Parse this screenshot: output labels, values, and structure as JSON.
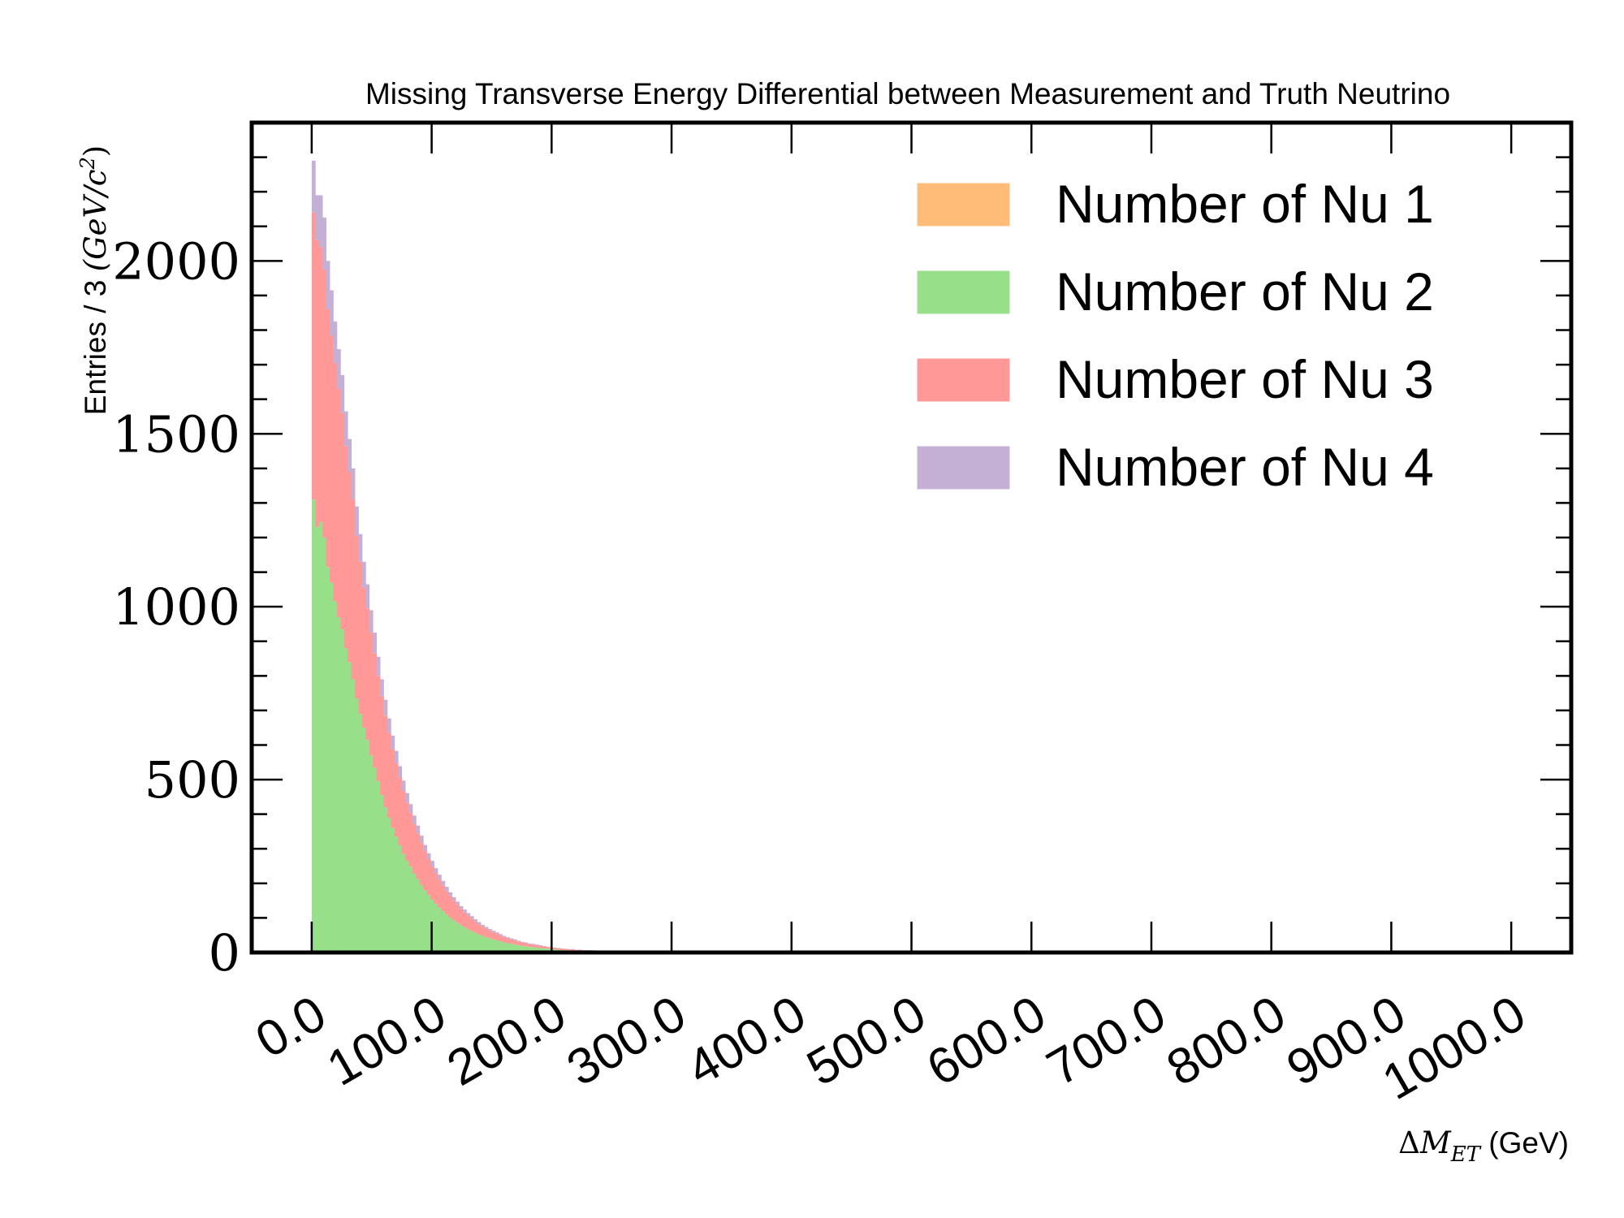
{
  "chart_data": {
    "type": "histogram",
    "stacked": true,
    "title": "Missing Transverse Energy Differential between Measurement and Truth Neutrino",
    "xlabel": "ΔM_ET (GeV)",
    "xlabel_parts": {
      "delta": "Δ",
      "symbol": "M",
      "subscript": "ET",
      "unit": " (GeV)"
    },
    "ylabel": "Entries / 3 (GeV/c²)",
    "ylabel_parts": {
      "prefix": "Entries / 3 ",
      "math": "(GeV/c",
      "sup": "2",
      "close": ")"
    },
    "bin_width": 3,
    "bin_start": 0,
    "xlim": [
      -50,
      1050
    ],
    "ylim": [
      0,
      2400
    ],
    "x_ticks": [
      0,
      100,
      200,
      300,
      400,
      500,
      600,
      700,
      800,
      900,
      1000
    ],
    "x_tick_labels": [
      "0.0",
      "100.0",
      "200.0",
      "300.0",
      "400.0",
      "500.0",
      "600.0",
      "700.0",
      "800.0",
      "900.0",
      "1000.0"
    ],
    "y_ticks": [
      0,
      500,
      1000,
      1500,
      2000
    ],
    "y_tick_labels": [
      "0",
      "500",
      "1000",
      "1500",
      "2000"
    ],
    "legend_position": "top-right",
    "series": [
      {
        "name": "Number of Nu 1",
        "color": "#ffbb78",
        "values": []
      },
      {
        "name": "Number of Nu 2",
        "color": "#98df8a",
        "values": [
          1310,
          1230,
          1245,
          1200,
          1115,
          1070,
          1015,
          970,
          935,
          880,
          840,
          790,
          735,
          690,
          650,
          615,
          570,
          535,
          495,
          455,
          420,
          390,
          360,
          335,
          310,
          285,
          265,
          248,
          228,
          212,
          195,
          180,
          166,
          153,
          141,
          130,
          120,
          110,
          101,
          93,
          86,
          79,
          73,
          67,
          62,
          57,
          52,
          48,
          44,
          41,
          38,
          35,
          32,
          29,
          27,
          25,
          23,
          21,
          19,
          18,
          16,
          15,
          14,
          13,
          12,
          11,
          10,
          9,
          8,
          7,
          7,
          6,
          6,
          5,
          5,
          4,
          4,
          4,
          3,
          3,
          3,
          3,
          2,
          2,
          2,
          2,
          2,
          2,
          1,
          1,
          1,
          1,
          1,
          1,
          1,
          1,
          1,
          1,
          1,
          1
        ]
      },
      {
        "name": "Number of Nu 3",
        "color": "#ff9896",
        "values": [
          830,
          830,
          795,
          775,
          745,
          715,
          690,
          660,
          625,
          585,
          550,
          520,
          470,
          440,
          405,
          380,
          355,
          330,
          305,
          285,
          265,
          245,
          228,
          212,
          196,
          182,
          168,
          155,
          144,
          133,
          123,
          113,
          104,
          96,
          88,
          81,
          74,
          68,
          62,
          57,
          52,
          47,
          43,
          40,
          36,
          33,
          30,
          27,
          25,
          23,
          21,
          19,
          17,
          16,
          14,
          13,
          12,
          11,
          10,
          9,
          8,
          8,
          7,
          6,
          6,
          5,
          5,
          4,
          4,
          4,
          3,
          3,
          3,
          2,
          2,
          2,
          2,
          2,
          2,
          1,
          1,
          1,
          1,
          1,
          1,
          1,
          1,
          1,
          1,
          1,
          1,
          0,
          0,
          0,
          0,
          0,
          0,
          0,
          0,
          0
        ]
      },
      {
        "name": "Number of Nu 4",
        "color": "#c5b0d5",
        "values": [
          150,
          130,
          150,
          150,
          140,
          130,
          120,
          115,
          110,
          100,
          95,
          90,
          85,
          80,
          75,
          70,
          65,
          60,
          55,
          50,
          46,
          42,
          39,
          36,
          33,
          30,
          28,
          26,
          24,
          22,
          20,
          18,
          17,
          16,
          15,
          14,
          13,
          12,
          11,
          10,
          9,
          8,
          8,
          7,
          7,
          6,
          6,
          5,
          5,
          4,
          4,
          4,
          4,
          3,
          3,
          3,
          3,
          2,
          2,
          2,
          2,
          2,
          2,
          2,
          1,
          1,
          1,
          1,
          1,
          1,
          1,
          1,
          1,
          1,
          1,
          1,
          1,
          1,
          1,
          1,
          1,
          1,
          0,
          0,
          0,
          0,
          0,
          0,
          0,
          0,
          0,
          0,
          0,
          0,
          0,
          0,
          0,
          0,
          0,
          0
        ]
      }
    ]
  }
}
